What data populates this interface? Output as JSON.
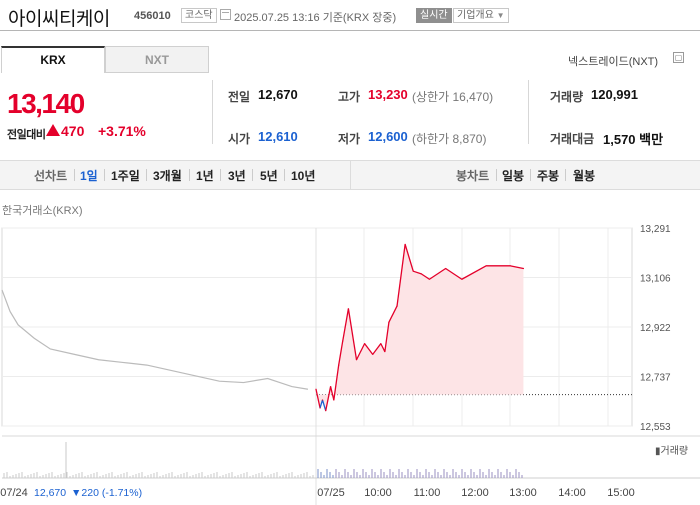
{
  "header": {
    "name": "아이씨티케이",
    "code": "456010",
    "market": "코스닥",
    "datetime": "2025.07.25 13:16  기준(KRX 장중)",
    "realtime_label": "실시간",
    "company_info_label": "기업개요"
  },
  "exchange_tabs": [
    "KRX",
    "NXT"
  ],
  "nextrade_link": "넥스트레이드(NXT)",
  "quote": {
    "price": "13,140",
    "change_label": "전일대비",
    "change": "470",
    "change_pct": "+3.71%"
  },
  "stats": {
    "prev_close_label": "전일",
    "prev_close": "12,670",
    "high_label": "고가",
    "high": "13,230",
    "upper_limit": "(상한가 16,470)",
    "volume_label": "거래량",
    "volume": "120,991",
    "open_label": "시가",
    "open": "12,610",
    "low_label": "저가",
    "low": "12,600",
    "lower_limit": "(하한가 8,870)",
    "amount_label": "거래대금",
    "amount": "1,570 백만"
  },
  "period_bar": {
    "line_label": "선차트",
    "line_periods": [
      "1일",
      "1주일",
      "3개월",
      "1년",
      "3년",
      "5년",
      "10년"
    ],
    "selected": "1일",
    "candle_label": "봉차트",
    "candle_periods": [
      "일봉",
      "주봉",
      "월봉"
    ]
  },
  "chart_source": "한국거래소(KRX)",
  "colors": {
    "up": "#e4002b",
    "down": "#1b61d1",
    "prev_line": "#bbbbbb",
    "fill": "#fde4e6"
  },
  "chart_data": {
    "type": "line",
    "y_ticks": [
      "13,291",
      "13,106",
      "12,922",
      "12,737",
      "12,553"
    ],
    "ylim": [
      12553,
      13291
    ],
    "x_labels": [
      "07/24",
      "07/25",
      "10:00",
      "11:00",
      "12:00",
      "13:00",
      "14:00",
      "15:00"
    ],
    "baseline": 12670,
    "volume_label": "거래량",
    "footer": {
      "date": "07/24",
      "close": "12,670",
      "change": "▼220",
      "change_pct": "(-1.71%)"
    },
    "series": [
      {
        "name": "07/24",
        "x": [
          "09:00",
          "09:10",
          "09:20",
          "09:40",
          "10:00",
          "10:30",
          "11:00",
          "11:30",
          "12:00",
          "12:30",
          "13:00",
          "13:30",
          "14:00",
          "14:30",
          "15:00",
          "15:20"
        ],
        "values": [
          13060,
          12980,
          12930,
          12880,
          12840,
          12820,
          12800,
          12790,
          12780,
          12760,
          12740,
          12720,
          12715,
          12730,
          12700,
          12690
        ]
      },
      {
        "name": "07/25",
        "x": [
          "09:00",
          "09:05",
          "09:08",
          "09:12",
          "09:18",
          "09:22",
          "09:28",
          "09:33",
          "09:40",
          "09:50",
          "10:00",
          "10:10",
          "10:20",
          "10:25",
          "10:30",
          "10:40",
          "10:50",
          "11:00",
          "11:10",
          "11:20",
          "11:40",
          "12:00",
          "12:30",
          "13:00",
          "13:16"
        ],
        "values": [
          12690,
          12620,
          12650,
          12610,
          12700,
          12650,
          12780,
          12870,
          12990,
          12800,
          12860,
          12820,
          12860,
          12830,
          12940,
          13000,
          13230,
          13130,
          13120,
          13100,
          13140,
          13100,
          13150,
          13150,
          13140
        ]
      }
    ]
  }
}
